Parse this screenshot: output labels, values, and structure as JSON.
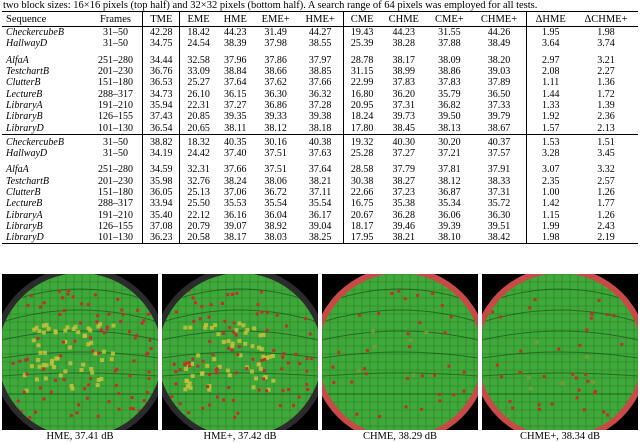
{
  "caption": "two block sizes: 16×16 pixels (top half) and 32×32 pixels (bottom half). A search range of 64 pixels was employed for all tests.",
  "table": {
    "headers": [
      "Sequence",
      "Frames",
      "TME",
      "EME",
      "HME",
      "EME+",
      "HME+",
      "CME",
      "CHME",
      "CME+",
      "CHME+",
      "ΔHME",
      "ΔCHME+"
    ],
    "blocks": [
      {
        "groups": [
          [
            [
              "CheckercubeB",
              "31–50",
              "42.28",
              "18.42",
              "44.23",
              "31.49",
              "44.27",
              "19.43",
              "44.23",
              "31.55",
              "44.26",
              "1.95",
              "1.98"
            ],
            [
              "HallwayD",
              "31–50",
              "34.75",
              "24.54",
              "38.39",
              "37.98",
              "38.55",
              "25.39",
              "38.28",
              "37.88",
              "38.49",
              "3.64",
              "3.74"
            ]
          ],
          [
            [
              "AlfaA",
              "251–280",
              "34.44",
              "32.58",
              "37.96",
              "37.86",
              "37.97",
              "28.78",
              "38.17",
              "38.09",
              "38.20",
              "2.97",
              "3.21"
            ],
            [
              "TestchartB",
              "201–230",
              "36.76",
              "33.09",
              "38.84",
              "38.66",
              "38.85",
              "31.15",
              "38.99",
              "38.86",
              "39.03",
              "2.08",
              "2.27"
            ],
            [
              "ClutterB",
              "151–180",
              "36.53",
              "25.27",
              "37.64",
              "37.62",
              "37.66",
              "22.99",
              "37.83",
              "37.83",
              "37.89",
              "1.11",
              "1.36"
            ],
            [
              "LectureB",
              "288–317",
              "34.73",
              "26.10",
              "36.15",
              "36.30",
              "36.32",
              "16.80",
              "36.20",
              "35.79",
              "36.50",
              "1.44",
              "1.72"
            ],
            [
              "LibraryA",
              "191–210",
              "35.94",
              "22.31",
              "37.27",
              "36.86",
              "37.28",
              "20.95",
              "37.31",
              "36.82",
              "37.33",
              "1.33",
              "1.39"
            ],
            [
              "LibraryB",
              "126–155",
              "37.43",
              "20.85",
              "39.35",
              "39.33",
              "39.38",
              "18.24",
              "39.73",
              "39.50",
              "39.79",
              "1.92",
              "2.36"
            ],
            [
              "LibraryD",
              "101–130",
              "36.54",
              "20.65",
              "38.11",
              "38.12",
              "38.18",
              "17.80",
              "38.45",
              "38.13",
              "38.67",
              "1.57",
              "2.13"
            ]
          ]
        ]
      },
      {
        "groups": [
          [
            [
              "CheckercubeB",
              "31–50",
              "38.82",
              "18.32",
              "40.35",
              "30.16",
              "40.38",
              "19.32",
              "40.30",
              "30.20",
              "40.37",
              "1.53",
              "1.51"
            ],
            [
              "HallwayD",
              "31–50",
              "34.19",
              "24.42",
              "37.40",
              "37.51",
              "37.63",
              "25.28",
              "37.27",
              "37.21",
              "37.57",
              "3.28",
              "3.45"
            ]
          ],
          [
            [
              "AlfaA",
              "251–280",
              "34.59",
              "32.31",
              "37.66",
              "37.51",
              "37.64",
              "28.58",
              "37.79",
              "37.81",
              "37.91",
              "3.07",
              "3.32"
            ],
            [
              "TestchartB",
              "201–230",
              "35.98",
              "32.76",
              "38.24",
              "38.06",
              "38.21",
              "30.38",
              "38.27",
              "38.12",
              "38.33",
              "2.35",
              "2.57"
            ],
            [
              "ClutterB",
              "151–180",
              "36.05",
              "25.13",
              "37.06",
              "36.72",
              "37.11",
              "22.66",
              "37.23",
              "36.87",
              "37.31",
              "1.00",
              "1.26"
            ],
            [
              "LectureB",
              "288–317",
              "33.94",
              "25.50",
              "35.53",
              "35.54",
              "35.54",
              "16.75",
              "35.38",
              "35.34",
              "35.72",
              "1.42",
              "1.77"
            ],
            [
              "LibraryA",
              "191–210",
              "35.40",
              "22.12",
              "36.16",
              "36.04",
              "36.17",
              "20.67",
              "36.28",
              "36.06",
              "36.30",
              "1.15",
              "1.26"
            ],
            [
              "LibraryB",
              "126–155",
              "37.08",
              "20.79",
              "39.07",
              "38.92",
              "39.04",
              "18.17",
              "39.46",
              "39.39",
              "39.51",
              "1.99",
              "2.43"
            ],
            [
              "LibraryD",
              "101–130",
              "36.23",
              "20.58",
              "38.17",
              "38.03",
              "38.25",
              "17.95",
              "38.21",
              "38.10",
              "38.42",
              "1.98",
              "2.19"
            ]
          ]
        ]
      }
    ],
    "bold_cells": [
      [
        0,
        0,
        0,
        6
      ],
      [
        0,
        0,
        1,
        6
      ],
      [
        0,
        1,
        0,
        10
      ],
      [
        0,
        1,
        1,
        10
      ],
      [
        0,
        1,
        2,
        10
      ],
      [
        0,
        1,
        3,
        10
      ],
      [
        0,
        1,
        4,
        10
      ],
      [
        0,
        1,
        5,
        10
      ],
      [
        0,
        1,
        6,
        10
      ],
      [
        1,
        0,
        0,
        6
      ],
      [
        1,
        0,
        1,
        6
      ],
      [
        1,
        1,
        0,
        10
      ],
      [
        1,
        1,
        1,
        10
      ],
      [
        1,
        1,
        2,
        10
      ],
      [
        1,
        1,
        3,
        10
      ],
      [
        1,
        1,
        4,
        10
      ],
      [
        1,
        1,
        5,
        10
      ],
      [
        1,
        1,
        6,
        10
      ]
    ]
  },
  "panels": [
    {
      "caption": "HME, 37.41 dB",
      "ring_color": "#2b2b2b",
      "disc_color": "#3fa83a",
      "highlight_color": "#c9c23a",
      "error_color": "#c0302a"
    },
    {
      "caption": "HME+, 37.42 dB",
      "ring_color": "#2b2b2b",
      "disc_color": "#3fa83a",
      "highlight_color": "#c9c23a",
      "error_color": "#c0302a"
    },
    {
      "caption": "CHME, 38.29 dB",
      "ring_color": "#c84a46",
      "disc_color": "#3fa83a",
      "highlight_color": "#7a9b3a",
      "error_color": "#c0302a"
    },
    {
      "caption": "CHME+, 38.34 dB",
      "ring_color": "#c84a46",
      "disc_color": "#3fa83a",
      "highlight_color": "#7a9b3a",
      "error_color": "#c0302a"
    }
  ]
}
